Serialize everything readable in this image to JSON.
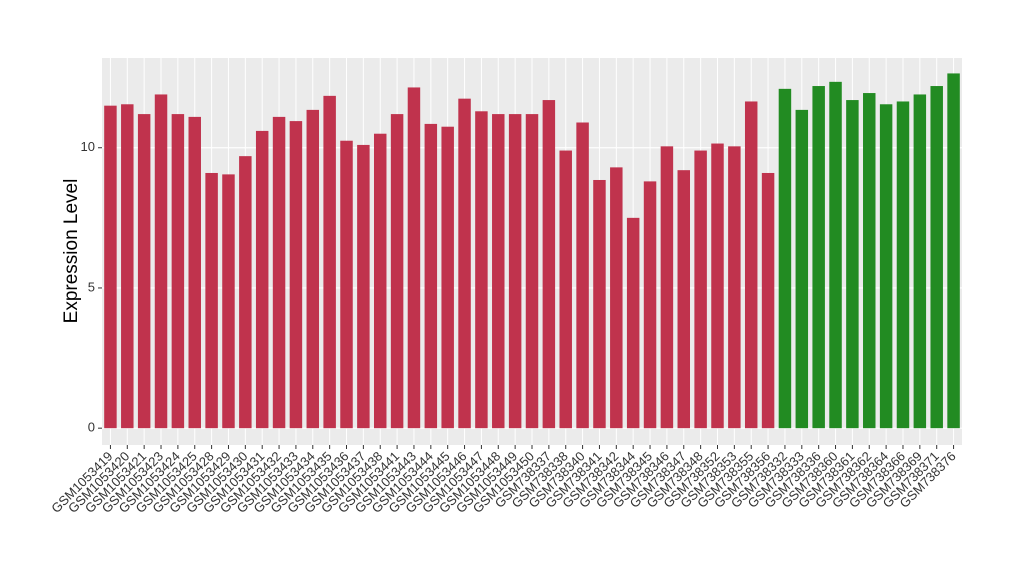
{
  "chart_data": {
    "type": "bar",
    "y_label": "Expression Level",
    "categories": [
      "GSM1053419",
      "GSM1053420",
      "GSM1053421",
      "GSM1053423",
      "GSM1053424",
      "GSM1053425",
      "GSM1053428",
      "GSM1053429",
      "GSM1053430",
      "GSM1053431",
      "GSM1053432",
      "GSM1053433",
      "GSM1053434",
      "GSM1053435",
      "GSM1053436",
      "GSM1053437",
      "GSM1053438",
      "GSM1053441",
      "GSM1053443",
      "GSM1053444",
      "GSM1053445",
      "GSM1053446",
      "GSM1053447",
      "GSM1053448",
      "GSM1053449",
      "GSM1053450",
      "GSM738337",
      "GSM738338",
      "GSM738340",
      "GSM738341",
      "GSM738342",
      "GSM738344",
      "GSM738345",
      "GSM738346",
      "GSM738347",
      "GSM738348",
      "GSM738352",
      "GSM738353",
      "GSM738355",
      "GSM738356",
      "GSM738332",
      "GSM738333",
      "GSM738336",
      "GSM738360",
      "GSM738361",
      "GSM738362",
      "GSM738364",
      "GSM738366",
      "GSM738369",
      "GSM738371",
      "GSM738376"
    ],
    "values": [
      11.5,
      11.55,
      11.2,
      11.9,
      11.2,
      11.1,
      9.1,
      9.05,
      9.7,
      10.6,
      11.1,
      10.95,
      11.35,
      11.85,
      10.25,
      10.1,
      10.5,
      11.2,
      12.15,
      10.85,
      10.75,
      11.75,
      11.3,
      11.2,
      11.2,
      11.2,
      11.7,
      9.9,
      10.9,
      8.85,
      9.3,
      7.5,
      8.8,
      10.05,
      9.2,
      9.9,
      10.15,
      10.05,
      11.65,
      9.1,
      12.1,
      11.35,
      12.2,
      12.35,
      11.7,
      11.95,
      11.55,
      11.65,
      11.9,
      12.2,
      12.65
    ],
    "colors": [
      "#c0334d",
      "#c0334d",
      "#c0334d",
      "#c0334d",
      "#c0334d",
      "#c0334d",
      "#c0334d",
      "#c0334d",
      "#c0334d",
      "#c0334d",
      "#c0334d",
      "#c0334d",
      "#c0334d",
      "#c0334d",
      "#c0334d",
      "#c0334d",
      "#c0334d",
      "#c0334d",
      "#c0334d",
      "#c0334d",
      "#c0334d",
      "#c0334d",
      "#c0334d",
      "#c0334d",
      "#c0334d",
      "#c0334d",
      "#c0334d",
      "#c0334d",
      "#c0334d",
      "#c0334d",
      "#c0334d",
      "#c0334d",
      "#c0334d",
      "#c0334d",
      "#c0334d",
      "#c0334d",
      "#c0334d",
      "#c0334d",
      "#c0334d",
      "#c0334d",
      "#228b22",
      "#228b22",
      "#228b22",
      "#228b22",
      "#228b22",
      "#228b22",
      "#228b22",
      "#228b22",
      "#228b22",
      "#228b22",
      "#228b22"
    ],
    "ylim": [
      -0.6,
      13.2
    ],
    "yticks": [
      0,
      5,
      10
    ],
    "grid": true
  }
}
